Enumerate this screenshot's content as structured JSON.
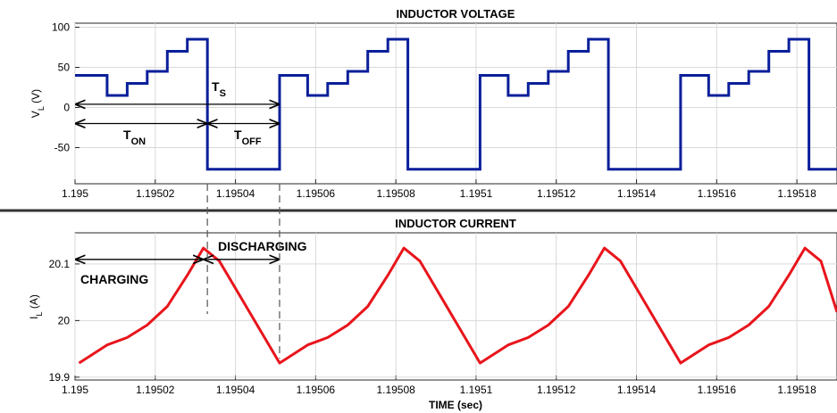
{
  "chart_data": [
    {
      "type": "line",
      "title": "INDUCTOR VOLTAGE",
      "ylabel": "V",
      "ylabel_sub": "L",
      "ylabel_unit": " (V)",
      "xlim": [
        1.195,
        1.19519
      ],
      "ylim": [
        -95,
        105
      ],
      "x_ticks": [
        1.195,
        1.19502,
        1.19504,
        1.19506,
        1.19508,
        1.1951,
        1.19512,
        1.19514,
        1.19516,
        1.19518
      ],
      "x_tick_labels": [
        "1.195",
        "1.19502",
        "1.19504",
        "1.19506",
        "1.19508",
        "1.1951",
        "1.19512",
        "1.19514",
        "1.19516",
        "1.19518"
      ],
      "y_ticks": [
        -50,
        0,
        50,
        100
      ],
      "y_tick_labels": [
        "-50",
        "0",
        "50",
        "100"
      ],
      "grid": true,
      "color": "#0a1f9a",
      "series": [
        {
          "x": [
            1.195,
            1.195,
            1.195008,
            1.195008,
            1.195013,
            1.195013,
            1.195018,
            1.195018,
            1.195023,
            1.195023,
            1.195028,
            1.195028,
            1.195033,
            1.195033,
            1.195051,
            1.195051,
            1.195058,
            1.195058,
            1.195063,
            1.195063,
            1.195068,
            1.195068,
            1.195073,
            1.195073,
            1.195078,
            1.195078,
            1.195083,
            1.195083,
            1.195101,
            1.195101,
            1.195108,
            1.195108,
            1.195113,
            1.195113,
            1.195118,
            1.195118,
            1.195123,
            1.195123,
            1.195128,
            1.195128,
            1.195133,
            1.195133,
            1.195151,
            1.195151,
            1.195158,
            1.195158,
            1.195163,
            1.195163,
            1.195168,
            1.195168,
            1.195173,
            1.195173,
            1.195178,
            1.195178,
            1.195183,
            1.195183,
            1.19519
          ],
          "y": [
            40,
            40,
            40,
            15,
            15,
            30,
            30,
            45,
            45,
            70,
            70,
            85,
            85,
            -77,
            -77,
            40,
            40,
            15,
            15,
            30,
            30,
            45,
            45,
            70,
            70,
            85,
            85,
            -77,
            -77,
            40,
            40,
            15,
            15,
            30,
            30,
            45,
            45,
            70,
            70,
            85,
            85,
            -77,
            -77,
            40,
            40,
            15,
            15,
            30,
            30,
            45,
            45,
            70,
            70,
            85,
            85,
            -77,
            -77
          ]
        }
      ],
      "annotations": [
        {
          "main": "T",
          "sub": "S",
          "x1": 1.195,
          "x2": 1.195051,
          "y": 4
        },
        {
          "main": "T",
          "sub": "ON",
          "x1": 1.195,
          "x2": 1.195033,
          "y": -20
        },
        {
          "main": "T",
          "sub": "OFF",
          "x1": 1.195033,
          "x2": 1.195051,
          "y": -20
        }
      ]
    },
    {
      "type": "line",
      "title": "INDUCTOR CURRENT",
      "ylabel": "I",
      "ylabel_sub": "L",
      "ylabel_unit": " (A)",
      "xlabel": "TIME (sec)",
      "xlim": [
        1.195,
        1.19519
      ],
      "ylim": [
        19.895,
        20.155
      ],
      "x_ticks": [
        1.195,
        1.19502,
        1.19504,
        1.19506,
        1.19508,
        1.1951,
        1.19512,
        1.19514,
        1.19516,
        1.19518
      ],
      "x_tick_labels": [
        "1.195",
        "1.19502",
        "1.19504",
        "1.19506",
        "1.19508",
        "1.1951",
        "1.19512",
        "1.19514",
        "1.19516",
        "1.19518"
      ],
      "y_ticks": [
        19.9,
        20,
        20.1
      ],
      "y_tick_labels": [
        "19.9",
        "20",
        "20.1"
      ],
      "grid": true,
      "color": "#e8141b",
      "series": [
        {
          "x": [
            1.195001,
            1.195008,
            1.195013,
            1.195018,
            1.195023,
            1.195028,
            1.195032,
            1.195036,
            1.195051,
            1.195058,
            1.195063,
            1.195068,
            1.195073,
            1.195078,
            1.195082,
            1.195086,
            1.195101,
            1.195108,
            1.195113,
            1.195118,
            1.195123,
            1.195128,
            1.195132,
            1.195136,
            1.195151,
            1.195158,
            1.195163,
            1.195168,
            1.195173,
            1.195178,
            1.195182,
            1.195186,
            1.19519
          ],
          "y": [
            19.925,
            19.957,
            19.97,
            19.992,
            20.025,
            20.08,
            20.128,
            20.105,
            19.925,
            19.957,
            19.97,
            19.992,
            20.025,
            20.08,
            20.128,
            20.105,
            19.925,
            19.957,
            19.97,
            19.992,
            20.025,
            20.08,
            20.128,
            20.105,
            19.925,
            19.957,
            19.97,
            19.992,
            20.025,
            20.08,
            20.128,
            20.105,
            20.015
          ]
        }
      ],
      "annotations": [
        {
          "label": "CHARGING",
          "x1": 1.195,
          "x2": 1.195032,
          "y": 20.108
        },
        {
          "label": "DISCHARGING",
          "x1": 1.195032,
          "x2": 1.195051,
          "y": 20.108
        }
      ]
    }
  ]
}
